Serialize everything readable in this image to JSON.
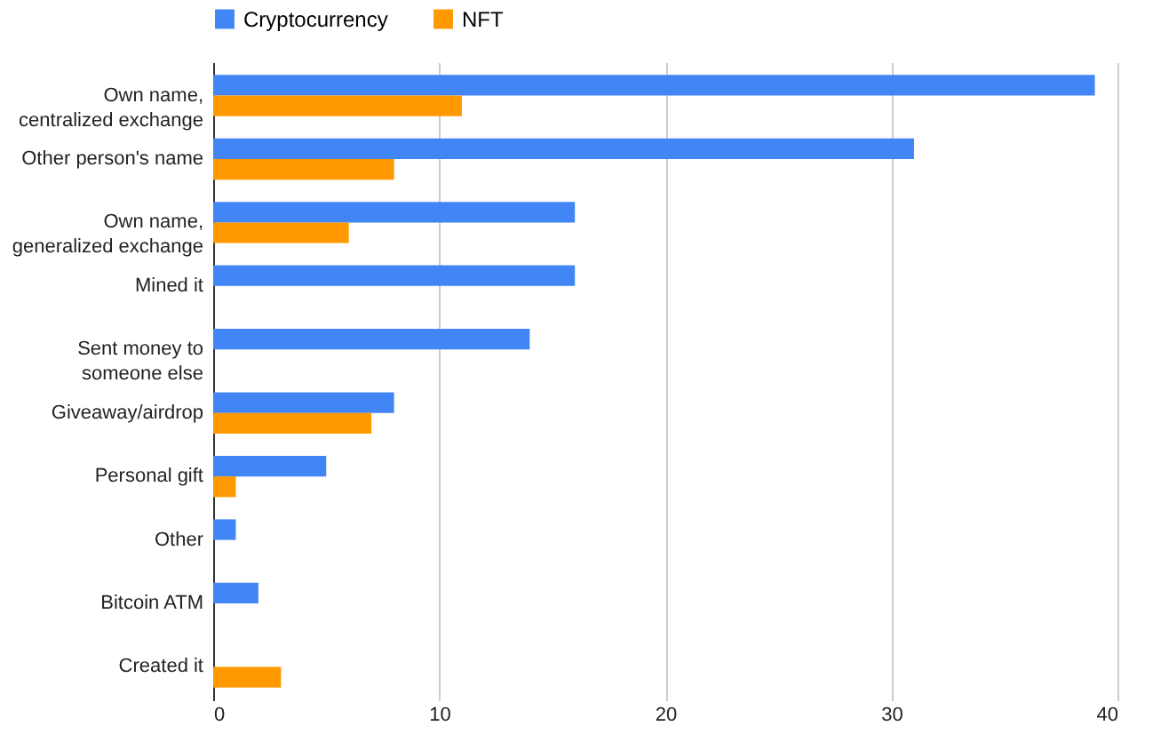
{
  "chart_data": {
    "type": "bar",
    "orientation": "horizontal",
    "categories": [
      "Own name, centralized exchange",
      "Other person's name",
      "Own name, generalized exchange",
      "Mined it",
      "Sent money to someone else",
      "Giveaway/airdrop",
      "Personal gift",
      "Other",
      "Bitcoin ATM",
      "Created it"
    ],
    "series": [
      {
        "name": "Cryptocurrency",
        "color": "#4285f4",
        "values": [
          39,
          31,
          16,
          16,
          14,
          8,
          5,
          1,
          2,
          null
        ]
      },
      {
        "name": "NFT",
        "color": "#ff9900",
        "values": [
          11,
          8,
          6,
          null,
          null,
          7,
          1,
          null,
          null,
          3
        ]
      }
    ],
    "xlim": [
      0,
      40
    ],
    "xticks": [
      0,
      10,
      20,
      30,
      40
    ],
    "grid": "x",
    "legend": "top"
  }
}
